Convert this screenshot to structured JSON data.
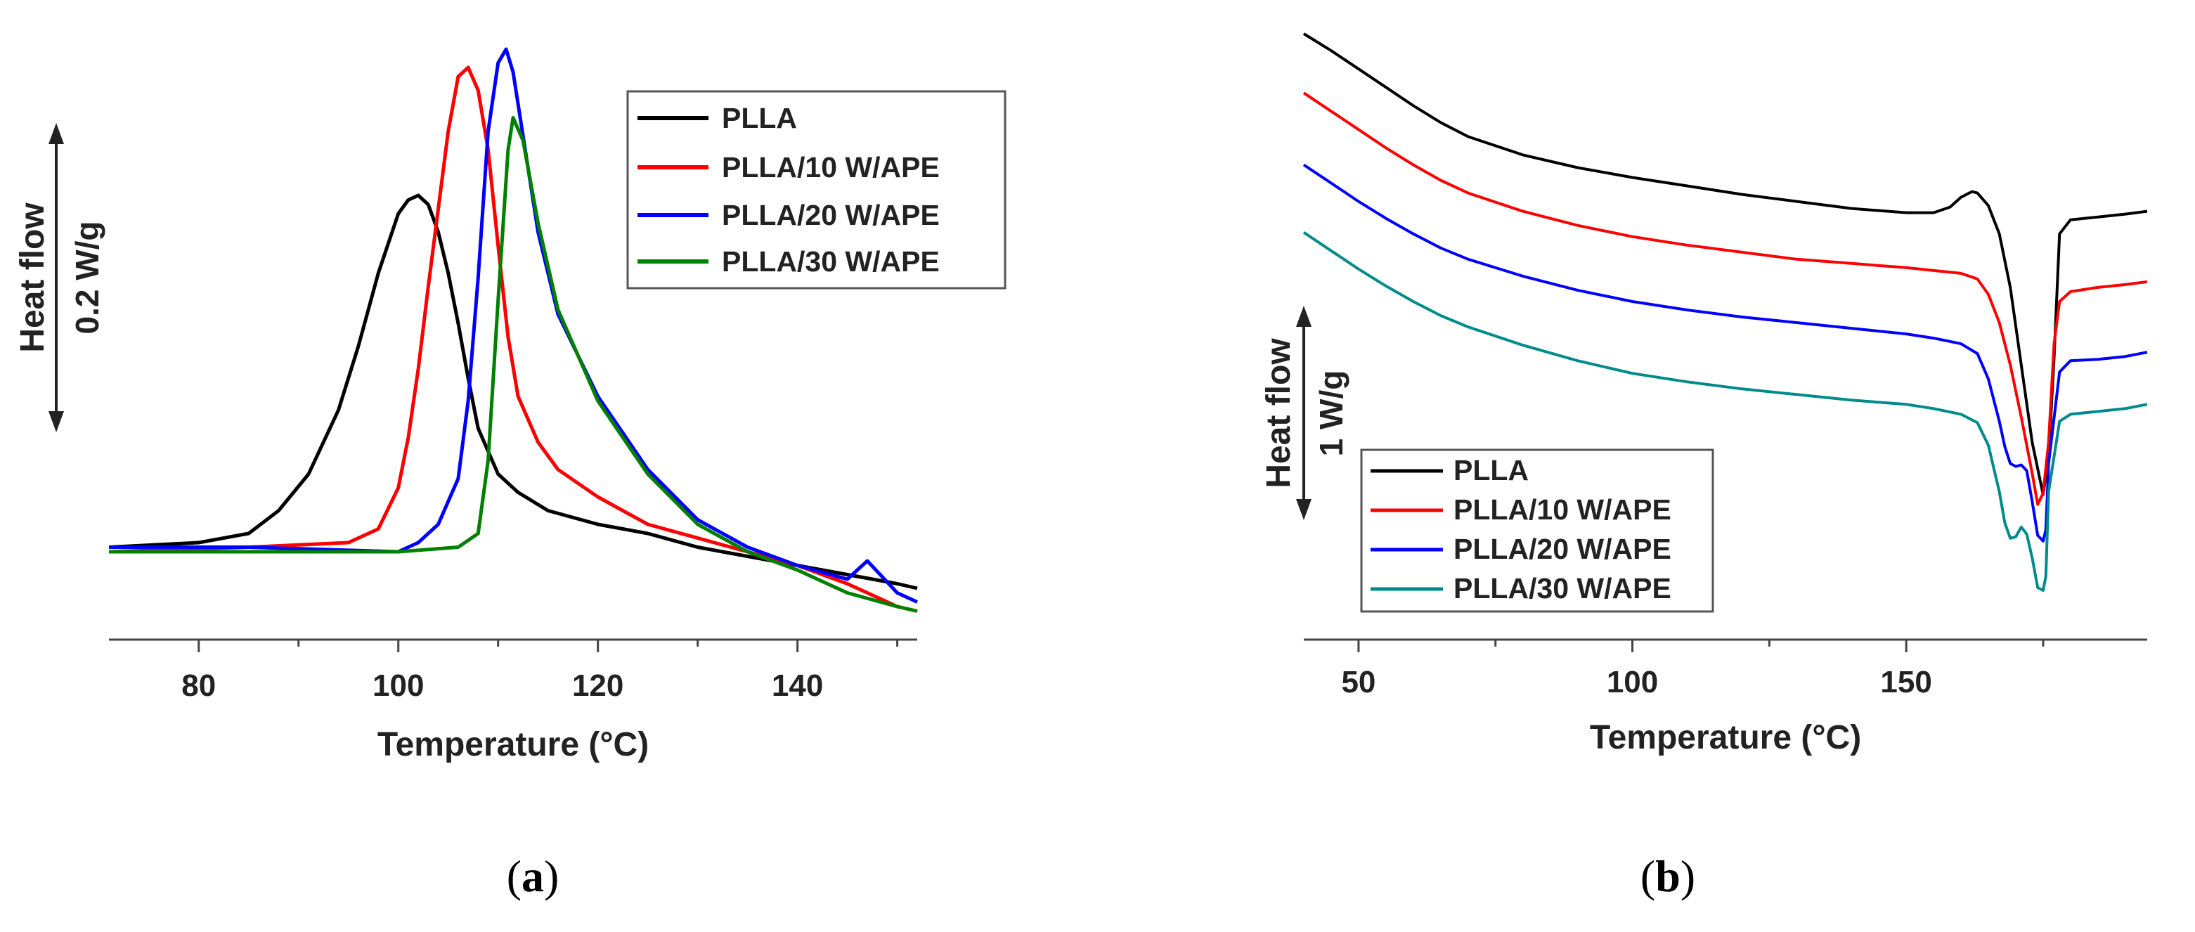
{
  "chart_data": [
    {
      "type": "line",
      "panel": "a",
      "panel_label": {
        "open": "(",
        "letter": "a",
        "close": ")"
      },
      "xlabel": "Temperature (°C)",
      "xlim": [
        71,
        152
      ],
      "xticks": [
        80,
        100,
        120,
        140
      ],
      "ylabel": "Heat flow",
      "scale_bar": "0.2 W/g",
      "legend_position": "top-right",
      "series": [
        {
          "name": "PLLA",
          "color": "#000000",
          "x": [
            71,
            80,
            85,
            88,
            91,
            94,
            96,
            98,
            100,
            101,
            102,
            103,
            104,
            105,
            106,
            107,
            108,
            110,
            112,
            115,
            120,
            125,
            130,
            135,
            140,
            145,
            150,
            152
          ],
          "y": [
            0.01,
            0.02,
            0.04,
            0.09,
            0.17,
            0.31,
            0.45,
            0.61,
            0.74,
            0.77,
            0.78,
            0.76,
            0.7,
            0.61,
            0.5,
            0.38,
            0.27,
            0.17,
            0.13,
            0.09,
            0.06,
            0.04,
            0.01,
            -0.01,
            -0.03,
            -0.05,
            -0.07,
            -0.08
          ]
        },
        {
          "name": "PLLA/10 W/APE",
          "color": "#ff0000",
          "x": [
            71,
            85,
            95,
            98,
            100,
            101,
            102,
            103,
            104,
            105,
            106,
            107,
            108,
            109,
            110,
            111,
            112,
            114,
            116,
            120,
            125,
            130,
            135,
            140,
            145,
            150,
            152
          ],
          "y": [
            0.0,
            0.01,
            0.02,
            0.05,
            0.14,
            0.25,
            0.4,
            0.58,
            0.75,
            0.92,
            1.04,
            1.06,
            1.01,
            0.88,
            0.67,
            0.47,
            0.34,
            0.24,
            0.18,
            0.12,
            0.06,
            0.03,
            0.0,
            -0.03,
            -0.07,
            -0.12,
            -0.13
          ]
        },
        {
          "name": "PLLA/20 W/APE",
          "color": "#0000ff",
          "x": [
            71,
            85,
            100,
            102,
            104,
            106,
            107,
            108,
            109,
            110,
            110.8,
            111.5,
            112.5,
            114,
            116,
            120,
            125,
            130,
            135,
            140,
            145,
            147,
            150,
            152
          ],
          "y": [
            0.01,
            0.01,
            0.0,
            0.02,
            0.06,
            0.16,
            0.33,
            0.6,
            0.92,
            1.07,
            1.1,
            1.05,
            0.91,
            0.7,
            0.52,
            0.34,
            0.18,
            0.07,
            0.01,
            -0.03,
            -0.06,
            -0.02,
            -0.09,
            -0.11
          ]
        },
        {
          "name": "PLLA/30 W/APE",
          "color": "#008000",
          "x": [
            71,
            85,
            100,
            106,
            108,
            109,
            110,
            111,
            111.5,
            112.5,
            114,
            116,
            120,
            125,
            130,
            135,
            140,
            145,
            150,
            152
          ],
          "y": [
            0.0,
            0.0,
            0.0,
            0.01,
            0.04,
            0.2,
            0.55,
            0.88,
            0.95,
            0.9,
            0.72,
            0.53,
            0.33,
            0.17,
            0.06,
            0.0,
            -0.04,
            -0.09,
            -0.12,
            -0.13
          ]
        }
      ]
    },
    {
      "type": "line",
      "panel": "b",
      "panel_label": {
        "open": "(",
        "letter": "b",
        "close": ")"
      },
      "xlabel": "Temperature (°C)",
      "xlim": [
        40,
        194
      ],
      "xticks": [
        50,
        100,
        150
      ],
      "ylabel": "Heat flow",
      "scale_bar": "1 W/g",
      "legend_position": "bottom-left",
      "series": [
        {
          "name": "PLLA",
          "color": "#000000",
          "x": [
            40,
            45,
            50,
            55,
            60,
            65,
            70,
            80,
            90,
            100,
            110,
            120,
            130,
            140,
            150,
            155,
            158,
            160,
            162,
            163,
            165,
            167,
            169,
            171,
            173,
            175,
            176,
            177,
            178,
            180,
            185,
            190,
            194
          ],
          "y": [
            0.0,
            -0.12,
            -0.25,
            -0.38,
            -0.51,
            -0.63,
            -0.73,
            -0.86,
            -0.95,
            -1.02,
            -1.08,
            -1.14,
            -1.19,
            -1.24,
            -1.27,
            -1.27,
            -1.23,
            -1.16,
            -1.12,
            -1.13,
            -1.22,
            -1.42,
            -1.8,
            -2.35,
            -2.9,
            -3.27,
            -3.0,
            -2.3,
            -1.42,
            -1.32,
            -1.3,
            -1.28,
            -1.26
          ]
        },
        {
          "name": "PLLA/10 W/APE",
          "color": "#ff0000",
          "x": [
            40,
            45,
            50,
            55,
            60,
            65,
            70,
            80,
            90,
            100,
            110,
            120,
            130,
            140,
            150,
            155,
            160,
            163,
            165,
            167,
            169,
            171,
            173,
            174,
            175,
            176,
            177,
            178,
            180,
            185,
            190,
            194
          ],
          "y": [
            -0.42,
            -0.55,
            -0.68,
            -0.81,
            -0.93,
            -1.04,
            -1.13,
            -1.26,
            -1.36,
            -1.44,
            -1.5,
            -1.55,
            -1.6,
            -1.63,
            -1.66,
            -1.68,
            -1.7,
            -1.74,
            -1.85,
            -2.05,
            -2.35,
            -2.72,
            -3.12,
            -3.34,
            -3.26,
            -2.9,
            -2.2,
            -1.9,
            -1.83,
            -1.8,
            -1.78,
            -1.76
          ]
        },
        {
          "name": "PLLA/20 W/APE",
          "color": "#0000ff",
          "x": [
            40,
            45,
            50,
            55,
            60,
            65,
            70,
            80,
            90,
            100,
            110,
            120,
            130,
            140,
            150,
            155,
            160,
            163,
            165,
            167,
            168,
            169,
            170,
            171,
            172,
            173,
            174,
            175,
            175.5,
            176,
            178,
            180,
            185,
            190,
            194
          ],
          "y": [
            -0.93,
            -1.06,
            -1.19,
            -1.31,
            -1.42,
            -1.52,
            -1.6,
            -1.72,
            -1.82,
            -1.9,
            -1.96,
            -2.01,
            -2.05,
            -2.09,
            -2.13,
            -2.16,
            -2.2,
            -2.27,
            -2.45,
            -2.75,
            -2.93,
            -3.05,
            -3.07,
            -3.06,
            -3.1,
            -3.32,
            -3.56,
            -3.6,
            -3.52,
            -3.05,
            -2.4,
            -2.32,
            -2.31,
            -2.29,
            -2.26
          ]
        },
        {
          "name": "PLLA/30 W/APE",
          "color": "#008b8b",
          "x": [
            40,
            45,
            50,
            55,
            60,
            65,
            70,
            80,
            90,
            100,
            110,
            120,
            130,
            140,
            150,
            155,
            160,
            163,
            165,
            167,
            168,
            169,
            170,
            171,
            172,
            173,
            174,
            175,
            175.5,
            176,
            178,
            180,
            185,
            190,
            194
          ],
          "y": [
            -1.41,
            -1.54,
            -1.67,
            -1.79,
            -1.9,
            -2.0,
            -2.08,
            -2.21,
            -2.32,
            -2.41,
            -2.47,
            -2.52,
            -2.56,
            -2.6,
            -2.63,
            -2.66,
            -2.7,
            -2.76,
            -2.92,
            -3.25,
            -3.47,
            -3.58,
            -3.57,
            -3.5,
            -3.55,
            -3.72,
            -3.93,
            -3.95,
            -3.85,
            -3.25,
            -2.75,
            -2.7,
            -2.68,
            -2.66,
            -2.63
          ]
        }
      ]
    }
  ]
}
